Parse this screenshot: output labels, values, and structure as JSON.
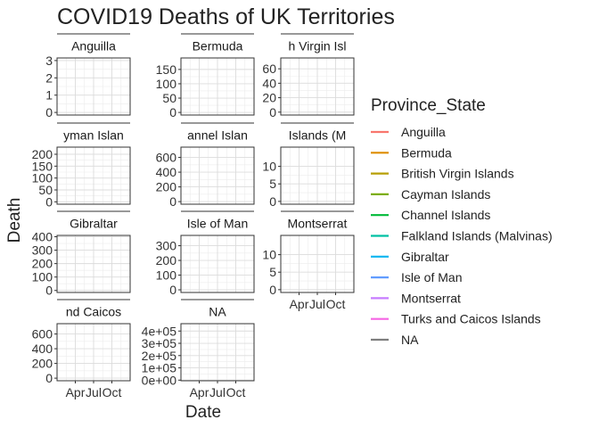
{
  "chart_data": {
    "type": "line",
    "title": "COVID19 Deaths of UK Territories",
    "xlabel": "Date",
    "ylabel": "Death",
    "facet_cols": 3,
    "x_ticks": [
      "Apr",
      "Jul",
      "Oct"
    ],
    "legend": {
      "title": "Province_State",
      "placement": "right",
      "entries": [
        {
          "name": "Anguilla",
          "color": "#F8766D"
        },
        {
          "name": "Bermuda",
          "color": "#DE8C00"
        },
        {
          "name": "British Virgin Islands",
          "color": "#B79F00"
        },
        {
          "name": "Cayman Islands",
          "color": "#7CAE00"
        },
        {
          "name": "Channel Islands",
          "color": "#00BA38"
        },
        {
          "name": "Falkland Islands (Malvinas)",
          "color": "#00C1A3"
        },
        {
          "name": "Gibraltar",
          "color": "#00B4F0"
        },
        {
          "name": "Isle of Man",
          "color": "#619CFF"
        },
        {
          "name": "Montserrat",
          "color": "#C77CFF"
        },
        {
          "name": "Turks and Caicos Islands",
          "color": "#F564E3"
        },
        {
          "name": "NA",
          "color": "#7F7F7F"
        }
      ]
    },
    "panels": [
      {
        "strip": "Anguilla",
        "y_ticks": [
          "0",
          "1",
          "2",
          "3"
        ],
        "y_values": [
          0,
          1,
          2,
          3
        ],
        "ylim": [
          -0.15,
          3.15
        ],
        "strip_clip": false
      },
      {
        "strip": "Bermuda",
        "y_ticks": [
          "0",
          "50",
          "100",
          "150"
        ],
        "y_values": [
          0,
          50,
          100,
          150
        ],
        "ylim": [
          -9,
          190
        ],
        "strip_clip": false
      },
      {
        "strip": "h Virgin Isl",
        "y_ticks": [
          "0",
          "20",
          "40",
          "60"
        ],
        "y_values": [
          0,
          20,
          40,
          60
        ],
        "ylim": [
          -4,
          75
        ],
        "strip_clip": true
      },
      {
        "strip": "yman Islan",
        "y_ticks": [
          "0",
          "50",
          "100",
          "150",
          "200"
        ],
        "y_values": [
          0,
          50,
          100,
          150,
          200
        ],
        "ylim": [
          -10,
          230
        ],
        "strip_clip": true
      },
      {
        "strip": "annel Islan",
        "y_ticks": [
          "0",
          "200",
          "400",
          "600"
        ],
        "y_values": [
          0,
          200,
          400,
          600
        ],
        "ylim": [
          -35,
          740
        ],
        "strip_clip": true
      },
      {
        "strip": "Islands (M",
        "y_ticks": [
          "0",
          "5",
          "10"
        ],
        "y_values": [
          0,
          5,
          10
        ],
        "ylim": [
          -0.8,
          15.5
        ],
        "strip_clip": true
      },
      {
        "strip": "Gibraltar",
        "y_ticks": [
          "0",
          "100",
          "200",
          "300",
          "400"
        ],
        "y_values": [
          0,
          100,
          200,
          300,
          400
        ],
        "ylim": [
          -15,
          410
        ],
        "strip_clip": false
      },
      {
        "strip": "Isle of Man",
        "y_ticks": [
          "0",
          "100",
          "200",
          "300"
        ],
        "y_values": [
          0,
          100,
          200,
          300
        ],
        "ylim": [
          -18,
          370
        ],
        "strip_clip": true
      },
      {
        "strip": "Montserrat",
        "y_ticks": [
          "0",
          "5",
          "10"
        ],
        "y_values": [
          0,
          5,
          10
        ],
        "ylim": [
          -0.8,
          15.5
        ],
        "strip_clip": true
      },
      {
        "strip": "nd Caicos",
        "y_ticks": [
          "0",
          "200",
          "400",
          "600"
        ],
        "y_values": [
          0,
          200,
          400,
          600
        ],
        "ylim": [
          -35,
          740
        ],
        "strip_clip": true
      },
      {
        "strip": "NA",
        "y_ticks": [
          "0e+00",
          "1e+05",
          "2e+05",
          "3e+05",
          "4e+05"
        ],
        "y_values": [
          0,
          100000,
          200000,
          300000,
          400000
        ],
        "ylim": [
          -5000,
          460000
        ],
        "strip_clip": false
      }
    ],
    "grid": true
  }
}
